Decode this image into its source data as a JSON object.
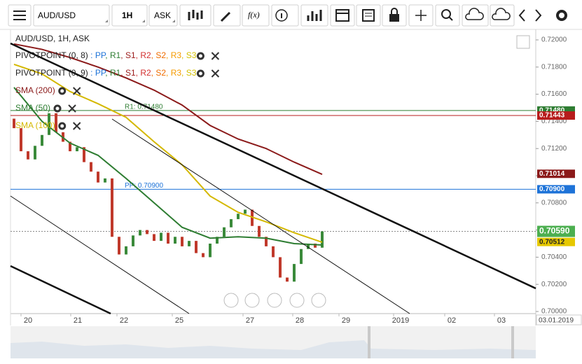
{
  "toolbar": {
    "symbol": "AUD/USD",
    "timeframe": "1H",
    "side": "ASK",
    "function": "f(x)"
  },
  "legend": {
    "instrument": "AUD/USD, 1H, ASK",
    "pivots": [
      {
        "name": "PIVOTPOINT (0, 8)",
        "components": [
          {
            "text": " : PP",
            "color": "#1e73d8"
          },
          {
            "text": ", R1",
            "color": "#2e7d32"
          },
          {
            "text": ", S1",
            "color": "#9b1b1b"
          },
          {
            "text": ", R2",
            "color": "#d32f2f"
          },
          {
            "text": ", S2",
            "color": "#ef6c00"
          },
          {
            "text": ", R3",
            "color": "#f59b00"
          },
          {
            "text": ", S3",
            "color": "#d4c000"
          }
        ]
      },
      {
        "name": "PIVOTPOINT (0, 9)",
        "components": [
          {
            "text": " : PP",
            "color": "#1e73d8"
          },
          {
            "text": ", R1",
            "color": "#2e7d32"
          },
          {
            "text": ", S1",
            "color": "#9b1b1b"
          },
          {
            "text": ", R2",
            "color": "#d32f2f"
          },
          {
            "text": ", S2",
            "color": "#ef6c00"
          },
          {
            "text": ", R3",
            "color": "#f59b00"
          },
          {
            "text": ", S3",
            "color": "#d4c000"
          }
        ]
      }
    ]
  },
  "chart_data": {
    "type": "candlestick",
    "open": [
      0.7142,
      0.7135,
      0.7118,
      0.7112,
      0.7122,
      0.713,
      0.7146,
      0.7132,
      0.7125,
      0.7118,
      0.7121,
      0.711,
      0.7103,
      0.7095,
      0.7098,
      0.7055,
      0.7042,
      0.7048,
      0.7056,
      0.706,
      0.7057,
      0.7052,
      0.7058,
      0.705,
      0.7055,
      0.7048,
      0.7052,
      0.7043,
      0.704,
      0.705,
      0.7055,
      0.7062,
      0.7068,
      0.7072,
      0.7075,
      0.7063,
      0.7055,
      0.7048,
      0.704,
      0.7025,
      0.7022,
      0.7035,
      0.7046,
      0.705,
      0.7047
    ],
    "close": [
      0.7135,
      0.7118,
      0.7112,
      0.7122,
      0.713,
      0.7146,
      0.7132,
      0.7125,
      0.7118,
      0.7121,
      0.711,
      0.7103,
      0.7095,
      0.7098,
      0.7055,
      0.7042,
      0.7048,
      0.7056,
      0.706,
      0.7057,
      0.7052,
      0.7058,
      0.705,
      0.7055,
      0.7048,
      0.7052,
      0.7043,
      0.704,
      0.705,
      0.7055,
      0.7062,
      0.7068,
      0.7072,
      0.7075,
      0.7063,
      0.7055,
      0.7048,
      0.704,
      0.7025,
      0.7022,
      0.7035,
      0.7046,
      0.705,
      0.7047,
      0.7059
    ],
    "up_color": "#3a8a3a",
    "down_color": "#c0392b",
    "series": [
      {
        "name": "SMA (200)",
        "color": "#8b1a1a",
        "values": [
          0.7197,
          0.7193,
          0.7187,
          0.718,
          0.7172,
          0.7163,
          0.7152,
          0.7137,
          0.7127,
          0.712,
          0.711,
          0.7101
        ]
      },
      {
        "name": "SMA (50)",
        "color": "#2e7d32",
        "values": [
          0.7165,
          0.714,
          0.7124,
          0.7115,
          0.7098,
          0.708,
          0.7062,
          0.7054,
          0.7055,
          0.7054,
          0.705,
          0.7049
        ]
      },
      {
        "name": "SMA (100)",
        "color": "#d4b800",
        "values": [
          0.7182,
          0.7175,
          0.7162,
          0.7153,
          0.7143,
          0.7125,
          0.7108,
          0.7085,
          0.7073,
          0.7066,
          0.7058,
          0.7051
        ]
      }
    ],
    "levels": [
      {
        "value": 0.7148,
        "label": "0.71480",
        "line_label": "R1: 0.71480",
        "color": "#2e7d32",
        "line": true,
        "dotted": false
      },
      {
        "value": 0.71443,
        "label": "0.71443",
        "color": "#b71c1c",
        "line": true,
        "dotted": false
      },
      {
        "value": 0.71014,
        "label": "0.71014",
        "color": "#8b1a1a",
        "line": false,
        "dotted": false
      },
      {
        "value": 0.709,
        "label": "0.70900",
        "line_label": "PP: 0.70900",
        "color": "#1e73d8",
        "line": true,
        "dotted": false
      },
      {
        "value": 0.7059,
        "label": "0.70590",
        "color": "#4caf50",
        "line": true,
        "dotted": true
      },
      {
        "value": 0.70512,
        "label": "0.70512",
        "color": "#e6c800",
        "line": false,
        "dotted": false
      }
    ],
    "ylim": [
      0.7,
      0.7209
    ],
    "yticks": [
      {
        "value": 0.7,
        "label": "0.70000"
      },
      {
        "value": 0.702,
        "label": "0.70200"
      },
      {
        "value": 0.704,
        "label": "0.70400"
      },
      {
        "value": 0.706,
        "label": "0.70600"
      },
      {
        "value": 0.708,
        "label": "0.70800"
      },
      {
        "value": 0.71,
        "label": "0.71000"
      },
      {
        "value": 0.712,
        "label": "0.71200"
      },
      {
        "value": 0.714,
        "label": "0.71400"
      },
      {
        "value": 0.716,
        "label": "0.71600"
      },
      {
        "value": 0.718,
        "label": "0.71800"
      },
      {
        "value": 0.72,
        "label": "0.72000"
      }
    ],
    "x_labels": [
      "20",
      "21",
      "22",
      "25",
      "27",
      "28",
      "29",
      "2019",
      "02",
      "03"
    ],
    "cursor_date": "03.01.2019"
  }
}
